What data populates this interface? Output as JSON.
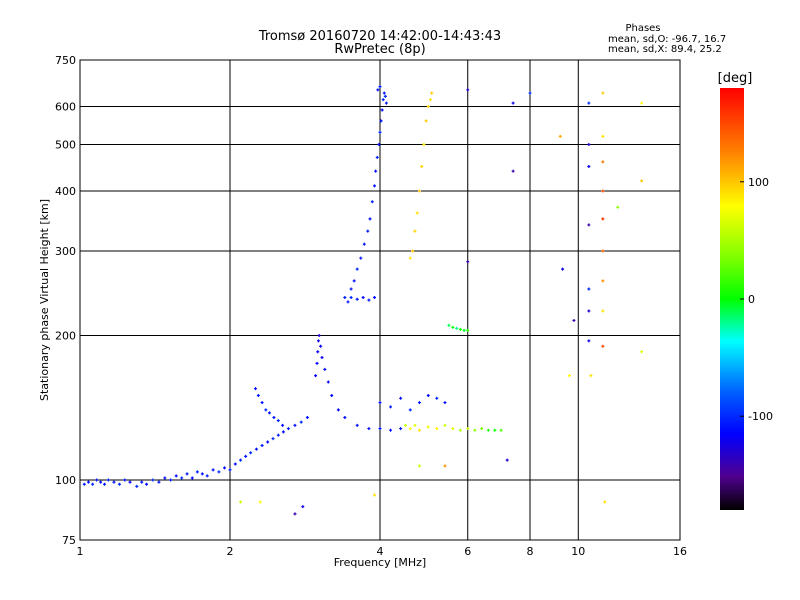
{
  "chart_data": {
    "type": "scatter",
    "title": "Tromsø 20160720 14:42:00-14:43:43",
    "subtitle": "RwPretec (8p)",
    "xlabel": "Frequency [MHz]",
    "ylabel": "Stationary phase Virtual Height [km]",
    "x_scale": "log",
    "y_scale": "log",
    "xlim": [
      1,
      16
    ],
    "ylim": [
      75,
      750
    ],
    "x_ticks": [
      1,
      2,
      4,
      6,
      8,
      10,
      16
    ],
    "x_tick_labels": [
      "1",
      "2",
      "4",
      "6",
      "8",
      "10",
      "16"
    ],
    "y_ticks": [
      75,
      100,
      200,
      300,
      400,
      500,
      600,
      750
    ],
    "y_tick_labels": [
      "75",
      "100",
      "200",
      "300",
      "400",
      "500",
      "600",
      "750"
    ],
    "grid": true,
    "phases_box": {
      "title": "Phases",
      "line1": "mean, sd,O: -96.7, 16.7",
      "line2": "mean, sd,X:  89.4, 25.2"
    },
    "colorbar": {
      "label": "[deg]",
      "range": [
        -180,
        180
      ],
      "ticks": [
        100,
        0,
        -100
      ],
      "tick_labels": [
        "100",
        "0",
        "-100"
      ]
    },
    "points": [
      [
        1.02,
        98,
        -105
      ],
      [
        1.04,
        99,
        -110
      ],
      [
        1.06,
        98,
        -100
      ],
      [
        1.08,
        100,
        -108
      ],
      [
        1.1,
        99,
        -112
      ],
      [
        1.12,
        98,
        -105
      ],
      [
        1.14,
        100,
        -102
      ],
      [
        1.17,
        99,
        -110
      ],
      [
        1.2,
        98,
        -100
      ],
      [
        1.23,
        100,
        -108
      ],
      [
        1.26,
        99,
        -115
      ],
      [
        1.3,
        97,
        -100
      ],
      [
        1.33,
        99,
        -106
      ],
      [
        1.36,
        98,
        -112
      ],
      [
        1.4,
        100,
        -100
      ],
      [
        1.44,
        99,
        -108
      ],
      [
        1.48,
        101,
        -110
      ],
      [
        1.52,
        100,
        -104
      ],
      [
        1.56,
        102,
        -112
      ],
      [
        1.6,
        101,
        -100
      ],
      [
        1.64,
        103,
        -108
      ],
      [
        1.68,
        101,
        -115
      ],
      [
        1.72,
        104,
        -102
      ],
      [
        1.76,
        103,
        -110
      ],
      [
        1.8,
        102,
        -105
      ],
      [
        1.85,
        105,
        -110
      ],
      [
        1.9,
        104,
        -100
      ],
      [
        1.95,
        106,
        -112
      ],
      [
        2.0,
        105,
        -104
      ],
      [
        2.05,
        108,
        -110
      ],
      [
        2.1,
        110,
        -102
      ],
      [
        2.15,
        112,
        -108
      ],
      [
        2.2,
        114,
        -100
      ],
      [
        2.26,
        116,
        -110
      ],
      [
        2.32,
        118,
        -105
      ],
      [
        2.38,
        120,
        -112
      ],
      [
        2.44,
        122,
        -100
      ],
      [
        2.5,
        124,
        -108
      ],
      [
        2.56,
        126,
        -110
      ],
      [
        2.62,
        128,
        -104
      ],
      [
        2.7,
        130,
        -112
      ],
      [
        2.78,
        132,
        -100
      ],
      [
        2.86,
        135,
        -108
      ],
      [
        2.25,
        155,
        -110
      ],
      [
        2.28,
        150,
        -105
      ],
      [
        2.32,
        145,
        -112
      ],
      [
        2.36,
        140,
        -100
      ],
      [
        2.4,
        138,
        -108
      ],
      [
        2.45,
        135,
        -110
      ],
      [
        2.5,
        133,
        -104
      ],
      [
        2.55,
        130,
        -112
      ],
      [
        2.97,
        165,
        -120
      ],
      [
        2.99,
        175,
        -115
      ],
      [
        3.0,
        185,
        -118
      ],
      [
        3.01,
        195,
        -122
      ],
      [
        3.02,
        200,
        -125
      ],
      [
        3.04,
        190,
        -118
      ],
      [
        3.06,
        180,
        -120
      ],
      [
        3.1,
        170,
        -115
      ],
      [
        3.15,
        160,
        -118
      ],
      [
        3.2,
        150,
        -112
      ],
      [
        3.3,
        140,
        -115
      ],
      [
        3.4,
        135,
        -112
      ],
      [
        3.6,
        130,
        -110
      ],
      [
        3.8,
        128,
        -112
      ],
      [
        4.0,
        128,
        -108
      ],
      [
        4.2,
        127,
        -110
      ],
      [
        4.4,
        128,
        -105
      ],
      [
        3.4,
        240,
        -105
      ],
      [
        3.45,
        235,
        -110
      ],
      [
        3.5,
        240,
        -100
      ],
      [
        3.6,
        238,
        -108
      ],
      [
        3.7,
        240,
        -112
      ],
      [
        3.8,
        237,
        -105
      ],
      [
        3.9,
        240,
        -110
      ],
      [
        3.5,
        250,
        -105
      ],
      [
        3.55,
        260,
        -110
      ],
      [
        3.6,
        275,
        -100
      ],
      [
        3.66,
        290,
        -108
      ],
      [
        3.72,
        310,
        -112
      ],
      [
        3.78,
        330,
        -105
      ],
      [
        3.82,
        350,
        -110
      ],
      [
        3.86,
        380,
        -100
      ],
      [
        3.9,
        410,
        -108
      ],
      [
        3.92,
        440,
        -112
      ],
      [
        3.95,
        470,
        -105
      ],
      [
        3.98,
        500,
        -110
      ],
      [
        4.0,
        530,
        -100
      ],
      [
        4.02,
        560,
        -108
      ],
      [
        4.04,
        590,
        -112
      ],
      [
        4.06,
        620,
        -105
      ],
      [
        4.08,
        640,
        -110
      ],
      [
        4.1,
        630,
        -100
      ],
      [
        4.12,
        610,
        -108
      ],
      [
        3.96,
        650,
        -112
      ],
      [
        4.0,
        660,
        -105
      ],
      [
        4.0,
        145,
        -110
      ],
      [
        4.2,
        142,
        -105
      ],
      [
        4.4,
        148,
        -112
      ],
      [
        4.6,
        140,
        -100
      ],
      [
        4.8,
        145,
        -108
      ],
      [
        5.0,
        150,
        -110
      ],
      [
        5.2,
        148,
        -104
      ],
      [
        5.4,
        145,
        -112
      ],
      [
        4.5,
        130,
        60
      ],
      [
        4.6,
        128,
        80
      ],
      [
        4.7,
        130,
        70
      ],
      [
        4.8,
        127,
        90
      ],
      [
        5.0,
        129,
        75
      ],
      [
        5.2,
        128,
        85
      ],
      [
        5.4,
        130,
        60
      ],
      [
        5.6,
        128,
        70
      ],
      [
        5.8,
        127,
        50
      ],
      [
        6.0,
        128,
        60
      ],
      [
        6.2,
        127,
        40
      ],
      [
        6.4,
        128,
        30
      ],
      [
        6.6,
        127,
        10
      ],
      [
        6.8,
        127,
        0
      ],
      [
        7.0,
        127,
        20
      ],
      [
        4.6,
        290,
        90
      ],
      [
        4.65,
        300,
        100
      ],
      [
        4.7,
        330,
        95
      ],
      [
        4.75,
        360,
        90
      ],
      [
        4.8,
        400,
        100
      ],
      [
        4.85,
        450,
        95
      ],
      [
        4.9,
        500,
        90
      ],
      [
        4.95,
        560,
        100
      ],
      [
        5.0,
        600,
        95
      ],
      [
        5.05,
        620,
        90
      ],
      [
        5.08,
        640,
        100
      ],
      [
        5.5,
        210,
        -10
      ],
      [
        5.6,
        208,
        0
      ],
      [
        5.7,
        207,
        -20
      ],
      [
        5.8,
        206,
        5
      ],
      [
        5.9,
        205,
        -5
      ],
      [
        6.0,
        205,
        10
      ],
      [
        6.0,
        285,
        -140
      ],
      [
        6.0,
        650,
        -130
      ],
      [
        7.4,
        610,
        -120
      ],
      [
        8.0,
        640,
        -100
      ],
      [
        7.4,
        440,
        -140
      ],
      [
        7.2,
        110,
        -130
      ],
      [
        9.3,
        275,
        -120
      ],
      [
        9.8,
        215,
        -140
      ],
      [
        10.5,
        610,
        -100
      ],
      [
        10.5,
        500,
        -130
      ],
      [
        10.5,
        450,
        -120
      ],
      [
        10.5,
        340,
        -140
      ],
      [
        10.5,
        250,
        -100
      ],
      [
        10.5,
        225,
        -130
      ],
      [
        10.5,
        195,
        -120
      ],
      [
        11.2,
        640,
        100
      ],
      [
        11.2,
        520,
        90
      ],
      [
        11.2,
        460,
        130
      ],
      [
        11.2,
        400,
        150
      ],
      [
        11.2,
        350,
        160
      ],
      [
        11.2,
        300,
        140
      ],
      [
        11.2,
        260,
        120
      ],
      [
        11.2,
        225,
        90
      ],
      [
        11.2,
        190,
        150
      ],
      [
        11.3,
        90,
        90
      ],
      [
        12.0,
        370,
        40
      ],
      [
        13.4,
        610,
        80
      ],
      [
        13.4,
        420,
        100
      ],
      [
        13.4,
        185,
        70
      ],
      [
        9.2,
        520,
        110
      ],
      [
        9.6,
        165,
        80
      ],
      [
        10.6,
        165,
        90
      ],
      [
        2.1,
        90,
        60
      ],
      [
        2.3,
        90,
        80
      ],
      [
        2.8,
        88,
        -120
      ],
      [
        2.7,
        85,
        -140
      ],
      [
        3.9,
        93,
        90
      ],
      [
        4.8,
        107,
        60
      ],
      [
        5.4,
        107,
        120
      ]
    ]
  }
}
